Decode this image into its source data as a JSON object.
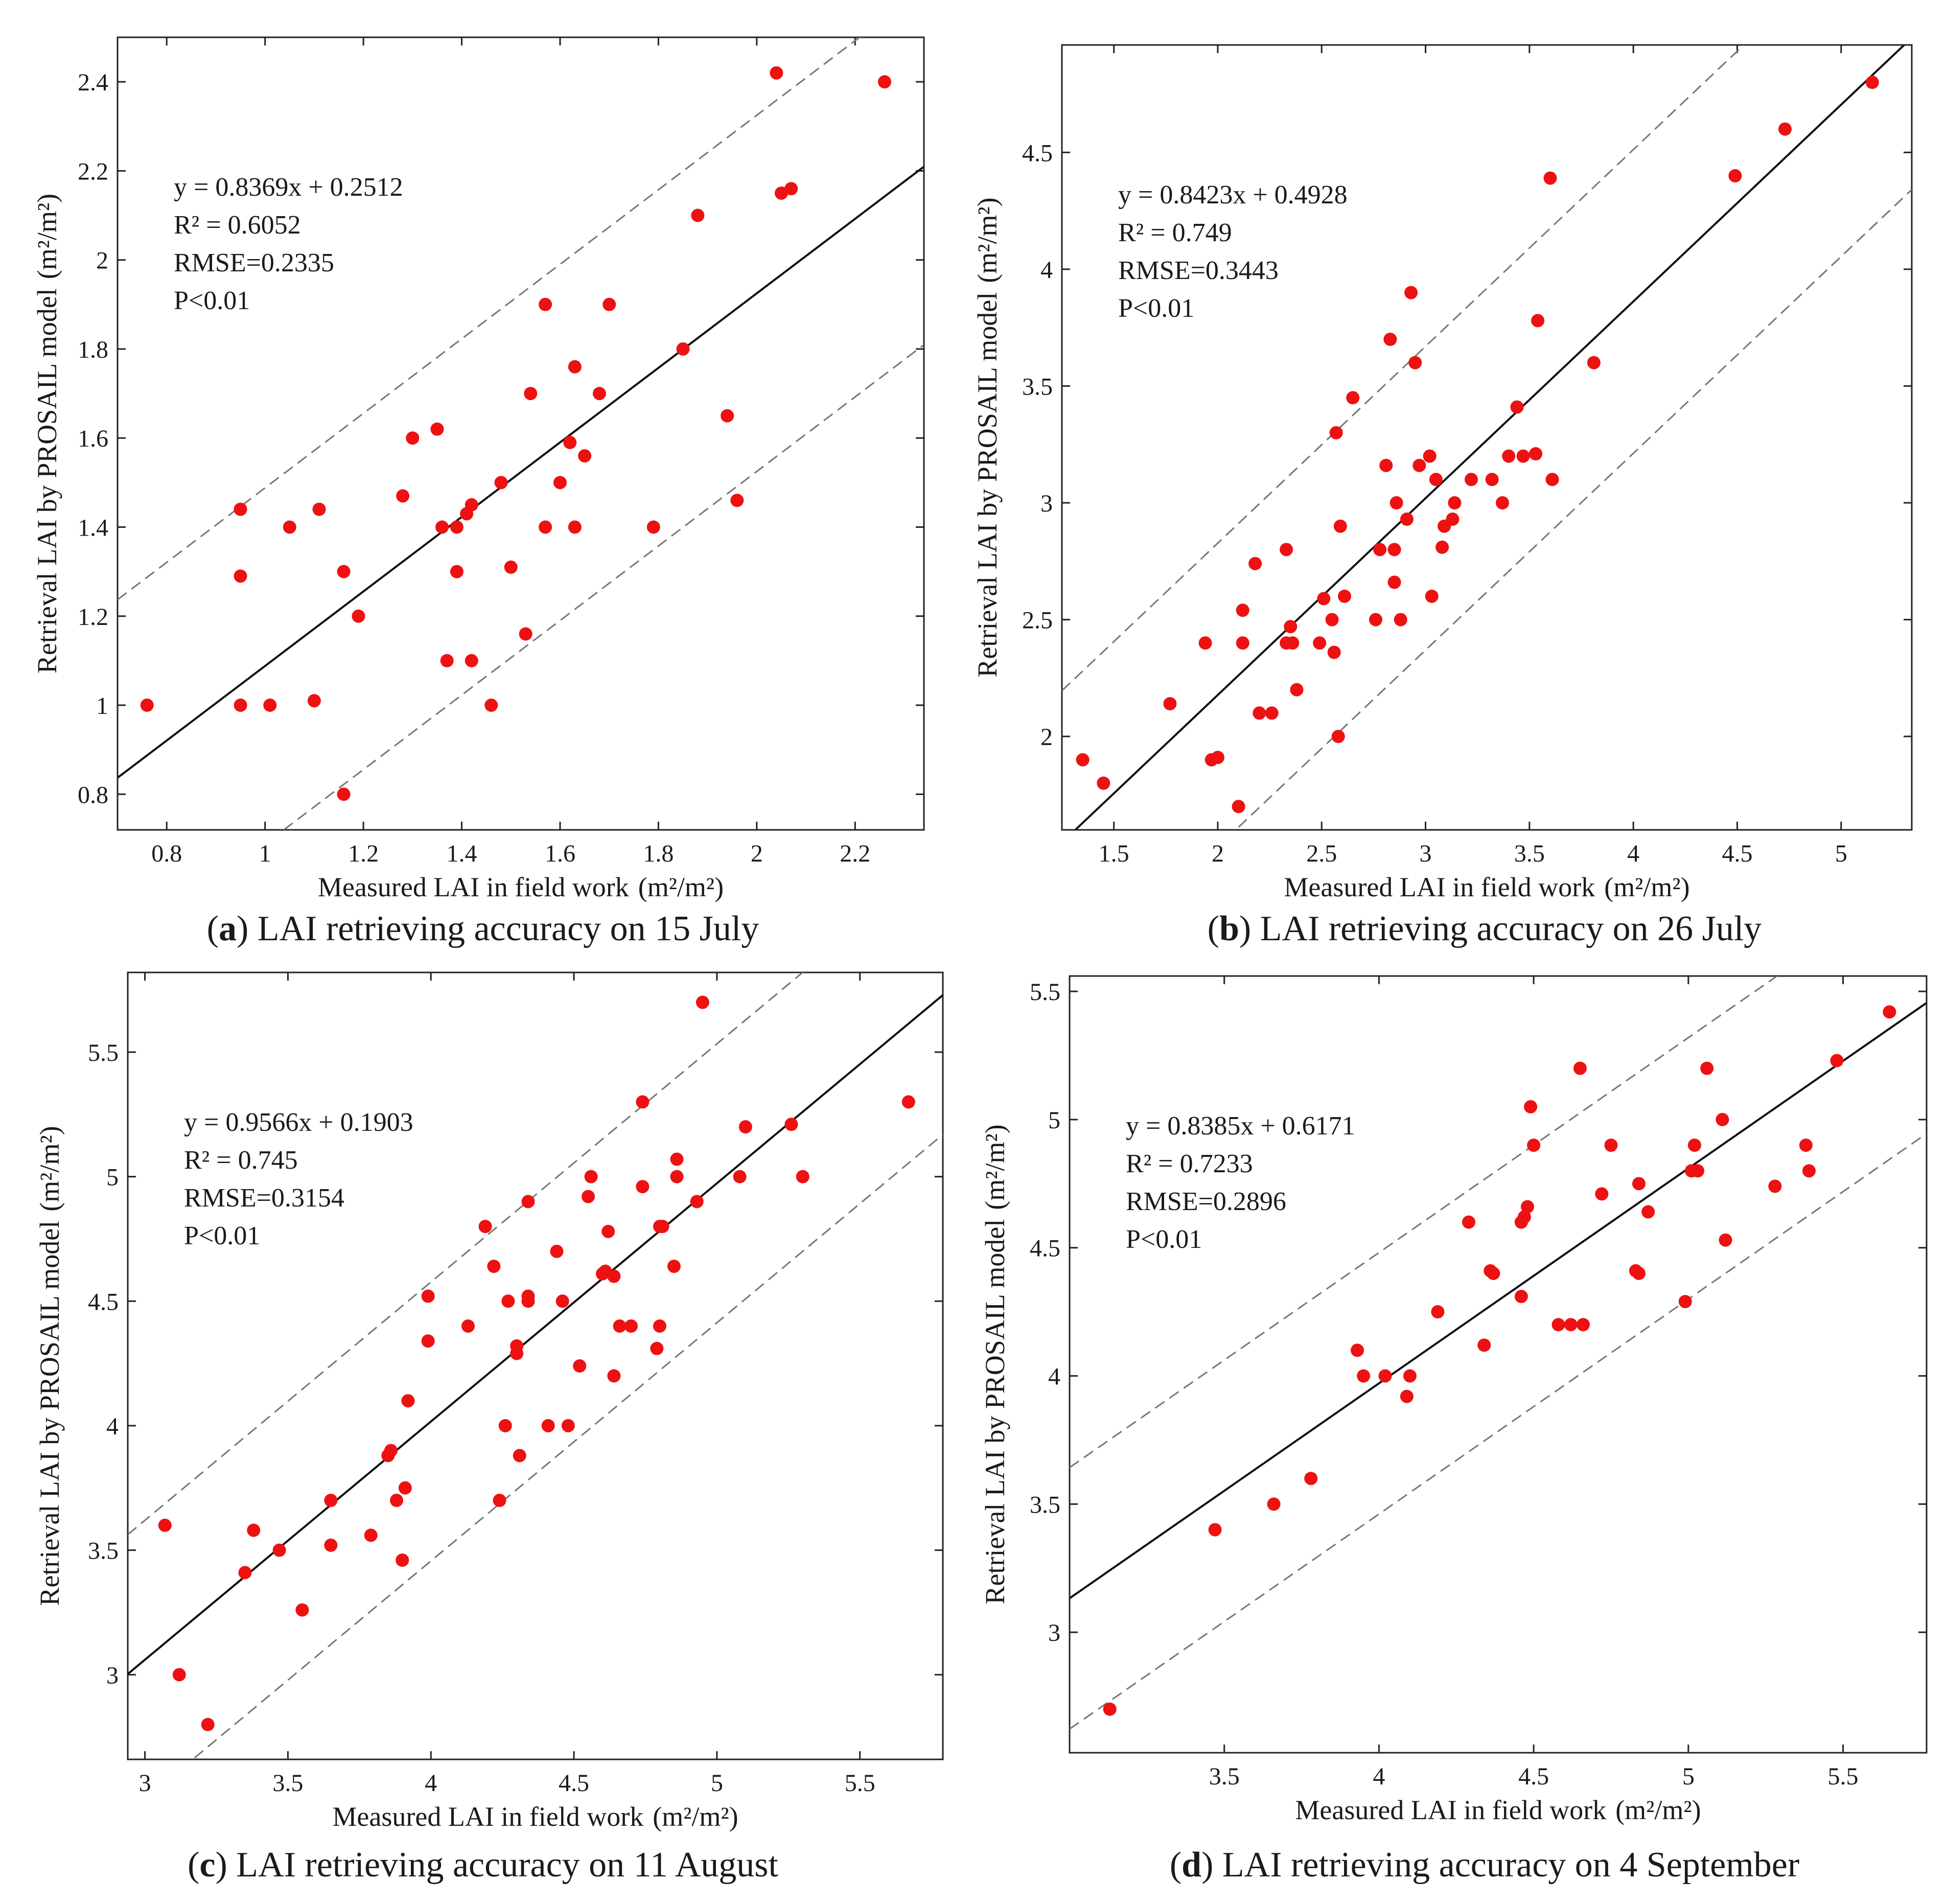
{
  "figure": {
    "colors": {
      "point": "#ee1111",
      "fit_line": "#111111",
      "bound_line": "#777777",
      "axes": "#222222"
    }
  },
  "chart_data": [
    {
      "type": "scatter",
      "panel": "a",
      "caption_letter": "a",
      "caption_text": " LAI retrieving accuracy on 15 July",
      "xlabel": "Measured LAI in field work",
      "ylabel": "Retrieval LAI by PROSAIL model",
      "unit_label": "(m²/m²)",
      "xlim": [
        0.7,
        2.34
      ],
      "ylim": [
        0.72,
        2.5
      ],
      "xticks": [
        0.8,
        1.0,
        1.2,
        1.4,
        1.6,
        1.8,
        2.0,
        2.2
      ],
      "xtick_labels": [
        "0.8",
        "1",
        "1.2",
        "1.4",
        "1.6",
        "1.8",
        "2",
        "2.2"
      ],
      "yticks": [
        0.8,
        1.0,
        1.2,
        1.4,
        1.6,
        1.8,
        2.0,
        2.2,
        2.4
      ],
      "ytick_labels": [
        "0.8",
        "1",
        "1.2",
        "1.4",
        "1.6",
        "1.8",
        "2",
        "2.2",
        "2.4"
      ],
      "fit": {
        "slope": 0.8369,
        "intercept": 0.2512
      },
      "bound_offset": 0.4,
      "annotations": [
        "y = 0.8369x + 0.2512",
        "R² = 0.6052",
        "RMSE=0.2335",
        "P<0.01"
      ],
      "points": [
        [
          0.76,
          1.0
        ],
        [
          0.95,
          1.44
        ],
        [
          0.95,
          1.29
        ],
        [
          0.95,
          1.0
        ],
        [
          1.01,
          1.0
        ],
        [
          1.05,
          1.4
        ],
        [
          1.1,
          1.01
        ],
        [
          1.11,
          1.44
        ],
        [
          1.16,
          0.8
        ],
        [
          1.16,
          1.3
        ],
        [
          1.19,
          1.2
        ],
        [
          1.28,
          1.47
        ],
        [
          1.3,
          1.6
        ],
        [
          1.35,
          1.62
        ],
        [
          1.36,
          1.4
        ],
        [
          1.37,
          1.1
        ],
        [
          1.39,
          1.4
        ],
        [
          1.39,
          1.3
        ],
        [
          1.41,
          1.43
        ],
        [
          1.42,
          1.45
        ],
        [
          1.42,
          1.1
        ],
        [
          1.46,
          1.0
        ],
        [
          1.48,
          1.5
        ],
        [
          1.5,
          1.31
        ],
        [
          1.53,
          1.16
        ],
        [
          1.54,
          1.7
        ],
        [
          1.57,
          1.9
        ],
        [
          1.57,
          1.4
        ],
        [
          1.6,
          1.5
        ],
        [
          1.62,
          1.59
        ],
        [
          1.63,
          1.76
        ],
        [
          1.63,
          1.4
        ],
        [
          1.65,
          1.56
        ],
        [
          1.68,
          1.7
        ],
        [
          1.7,
          1.9
        ],
        [
          1.79,
          1.4
        ],
        [
          1.85,
          1.8
        ],
        [
          1.88,
          2.1
        ],
        [
          1.94,
          1.65
        ],
        [
          1.96,
          1.46
        ],
        [
          2.04,
          2.42
        ],
        [
          2.05,
          2.15
        ],
        [
          2.07,
          2.16
        ],
        [
          2.26,
          2.4
        ]
      ]
    },
    {
      "type": "scatter",
      "panel": "b",
      "caption_letter": "b",
      "caption_text": " LAI retrieving accuracy on 26 July",
      "xlabel": "Measured LAI in field work",
      "ylabel": "Retrieval LAI by PROSAIL model",
      "unit_label": "(m²/m²)",
      "xlim": [
        1.25,
        5.34
      ],
      "ylim": [
        1.6,
        4.96
      ],
      "xticks": [
        1.5,
        2.0,
        2.5,
        3.0,
        3.5,
        4.0,
        4.5,
        5.0
      ],
      "xtick_labels": [
        "1.5",
        "2",
        "2.5",
        "3",
        "3.5",
        "4",
        "4.5",
        "5"
      ],
      "yticks": [
        2.0,
        2.5,
        3.0,
        3.5,
        4.0,
        4.5
      ],
      "ytick_labels": [
        "2",
        "2.5",
        "3",
        "3.5",
        "4",
        "4.5"
      ],
      "fit": {
        "slope": 0.8423,
        "intercept": 0.4928
      },
      "bound_offset": 0.65,
      "annotations": [
        "y = 0.8423x + 0.4928",
        "R² = 0.749",
        "RMSE=0.3443",
        "P<0.01"
      ],
      "points": [
        [
          1.35,
          1.9
        ],
        [
          1.45,
          1.8
        ],
        [
          1.77,
          2.14
        ],
        [
          1.94,
          2.4
        ],
        [
          1.97,
          1.9
        ],
        [
          2.0,
          1.91
        ],
        [
          2.1,
          1.7
        ],
        [
          2.12,
          2.54
        ],
        [
          2.12,
          2.4
        ],
        [
          2.18,
          2.74
        ],
        [
          2.2,
          2.1
        ],
        [
          2.26,
          2.1
        ],
        [
          2.33,
          2.8
        ],
        [
          2.33,
          2.4
        ],
        [
          2.35,
          2.47
        ],
        [
          2.36,
          2.4
        ],
        [
          2.38,
          2.2
        ],
        [
          2.49,
          2.4
        ],
        [
          2.51,
          2.59
        ],
        [
          2.55,
          2.5
        ],
        [
          2.56,
          2.36
        ],
        [
          2.57,
          3.3
        ],
        [
          2.58,
          2.0
        ],
        [
          2.59,
          2.9
        ],
        [
          2.61,
          2.6
        ],
        [
          2.65,
          3.45
        ],
        [
          2.76,
          2.5
        ],
        [
          2.78,
          2.8
        ],
        [
          2.81,
          3.16
        ],
        [
          2.83,
          3.7
        ],
        [
          2.85,
          2.8
        ],
        [
          2.85,
          2.66
        ],
        [
          2.86,
          3.0
        ],
        [
          2.88,
          2.5
        ],
        [
          2.91,
          2.93
        ],
        [
          2.93,
          3.9
        ],
        [
          2.95,
          3.6
        ],
        [
          2.97,
          3.16
        ],
        [
          3.02,
          3.2
        ],
        [
          3.03,
          2.6
        ],
        [
          3.05,
          3.1
        ],
        [
          3.08,
          2.81
        ],
        [
          3.09,
          2.9
        ],
        [
          3.13,
          2.93
        ],
        [
          3.14,
          3.0
        ],
        [
          3.22,
          3.1
        ],
        [
          3.32,
          3.1
        ],
        [
          3.37,
          3.0
        ],
        [
          3.4,
          3.2
        ],
        [
          3.44,
          3.41
        ],
        [
          3.47,
          3.2
        ],
        [
          3.53,
          3.21
        ],
        [
          3.54,
          3.78
        ],
        [
          3.6,
          4.39
        ],
        [
          3.61,
          3.1
        ],
        [
          3.81,
          3.6
        ],
        [
          4.49,
          4.4
        ],
        [
          4.73,
          4.6
        ],
        [
          5.15,
          4.8
        ]
      ]
    },
    {
      "type": "scatter",
      "panel": "c",
      "caption_letter": "c",
      "caption_text": " LAI retrieving accuracy on 11 August",
      "xlabel": "Measured LAI in field work",
      "ylabel": "Retrieval LAI by PROSAIL model",
      "unit_label": "(m²/m²)",
      "xlim": [
        2.94,
        5.79
      ],
      "ylim": [
        2.66,
        5.82
      ],
      "xticks": [
        3.0,
        3.5,
        4.0,
        4.5,
        5.0,
        5.5
      ],
      "xtick_labels": [
        "3",
        "3.5",
        "4",
        "4.5",
        "5",
        "5.5"
      ],
      "yticks": [
        3.0,
        3.5,
        4.0,
        4.5,
        5.0,
        5.5
      ],
      "ytick_labels": [
        "3",
        "3.5",
        "4",
        "4.5",
        "5",
        "5.5"
      ],
      "fit": {
        "slope": 0.9566,
        "intercept": 0.1903
      },
      "bound_offset": 0.56,
      "annotations": [
        "y = 0.9566x + 0.1903",
        "R² = 0.745",
        "RMSE=0.3154",
        "P<0.01"
      ],
      "points": [
        [
          3.07,
          3.6
        ],
        [
          3.12,
          3.0
        ],
        [
          3.22,
          2.8
        ],
        [
          3.35,
          3.41
        ],
        [
          3.38,
          3.58
        ],
        [
          3.47,
          3.5
        ],
        [
          3.55,
          3.26
        ],
        [
          3.65,
          3.7
        ],
        [
          3.65,
          3.52
        ],
        [
          3.79,
          3.56
        ],
        [
          3.85,
          3.88
        ],
        [
          3.86,
          3.9
        ],
        [
          3.88,
          3.7
        ],
        [
          3.9,
          3.46
        ],
        [
          3.91,
          3.75
        ],
        [
          3.92,
          4.1
        ],
        [
          3.99,
          4.34
        ],
        [
          3.99,
          4.52
        ],
        [
          4.13,
          4.4
        ],
        [
          4.19,
          4.8
        ],
        [
          4.22,
          4.64
        ],
        [
          4.24,
          3.7
        ],
        [
          4.26,
          4.0
        ],
        [
          4.27,
          4.5
        ],
        [
          4.3,
          4.32
        ],
        [
          4.3,
          4.29
        ],
        [
          4.31,
          3.88
        ],
        [
          4.34,
          4.9
        ],
        [
          4.34,
          4.5
        ],
        [
          4.34,
          4.52
        ],
        [
          4.41,
          4.0
        ],
        [
          4.44,
          4.7
        ],
        [
          4.46,
          4.5
        ],
        [
          4.48,
          4.0
        ],
        [
          4.52,
          4.24
        ],
        [
          4.55,
          4.92
        ],
        [
          4.56,
          5.0
        ],
        [
          4.6,
          4.61
        ],
        [
          4.61,
          4.62
        ],
        [
          4.62,
          4.78
        ],
        [
          4.64,
          4.2
        ],
        [
          4.64,
          4.6
        ],
        [
          4.66,
          4.4
        ],
        [
          4.7,
          4.4
        ],
        [
          4.74,
          5.3
        ],
        [
          4.74,
          4.96
        ],
        [
          4.79,
          4.31
        ],
        [
          4.8,
          4.4
        ],
        [
          4.8,
          4.8
        ],
        [
          4.81,
          4.8
        ],
        [
          4.85,
          4.64
        ],
        [
          4.86,
          5.07
        ],
        [
          4.86,
          5.0
        ],
        [
          4.93,
          4.9
        ],
        [
          4.95,
          5.7
        ],
        [
          5.08,
          5.0
        ],
        [
          5.1,
          5.2
        ],
        [
          5.26,
          5.21
        ],
        [
          5.3,
          5.0
        ],
        [
          5.67,
          5.3
        ]
      ]
    },
    {
      "type": "scatter",
      "panel": "d",
      "caption_letter": "d",
      "caption_text": " LAI retrieving accuracy on 4 September",
      "xlabel": "Measured LAI in field work",
      "ylabel": "Retrieval LAI by PROSAIL model",
      "unit_label": "(m²/m²)",
      "xlim": [
        3.0,
        5.77
      ],
      "ylim": [
        2.53,
        5.56
      ],
      "xticks": [
        3.5,
        4.0,
        4.5,
        5.0,
        5.5
      ],
      "xtick_labels": [
        "3.5",
        "4",
        "4.5",
        "5",
        "5.5"
      ],
      "yticks": [
        3.0,
        3.5,
        4.0,
        4.5,
        5.0,
        5.5
      ],
      "ytick_labels": [
        "3",
        "3.5",
        "4",
        "4.5",
        "5",
        "5.5"
      ],
      "fit": {
        "slope": 0.8385,
        "intercept": 0.6171
      },
      "bound_offset": 0.51,
      "annotations": [
        "y = 0.8385x + 0.6171",
        "R² = 0.7233",
        "RMSE=0.2896",
        "P<0.01"
      ],
      "points": [
        [
          3.13,
          2.7
        ],
        [
          3.47,
          3.4
        ],
        [
          3.66,
          3.5
        ],
        [
          3.78,
          3.6
        ],
        [
          3.93,
          4.1
        ],
        [
          3.95,
          4.0
        ],
        [
          4.02,
          4.0
        ],
        [
          4.09,
          3.92
        ],
        [
          4.1,
          4.0
        ],
        [
          4.19,
          4.25
        ],
        [
          4.29,
          4.6
        ],
        [
          4.34,
          4.12
        ],
        [
          4.36,
          4.41
        ],
        [
          4.37,
          4.4
        ],
        [
          4.46,
          4.31
        ],
        [
          4.46,
          4.6
        ],
        [
          4.47,
          4.62
        ],
        [
          4.48,
          4.66
        ],
        [
          4.49,
          5.05
        ],
        [
          4.5,
          4.9
        ],
        [
          4.58,
          4.2
        ],
        [
          4.62,
          4.2
        ],
        [
          4.65,
          5.2
        ],
        [
          4.66,
          4.2
        ],
        [
          4.72,
          4.71
        ],
        [
          4.75,
          4.9
        ],
        [
          4.83,
          4.41
        ],
        [
          4.84,
          4.75
        ],
        [
          4.84,
          4.4
        ],
        [
          4.87,
          4.64
        ],
        [
          4.99,
          4.29
        ],
        [
          5.01,
          4.8
        ],
        [
          5.02,
          4.9
        ],
        [
          5.03,
          4.8
        ],
        [
          5.06,
          5.2
        ],
        [
          5.11,
          5.0
        ],
        [
          5.12,
          4.53
        ],
        [
          5.28,
          4.74
        ],
        [
          5.38,
          4.9
        ],
        [
          5.39,
          4.8
        ],
        [
          5.48,
          5.23
        ],
        [
          5.65,
          5.42
        ]
      ]
    }
  ]
}
